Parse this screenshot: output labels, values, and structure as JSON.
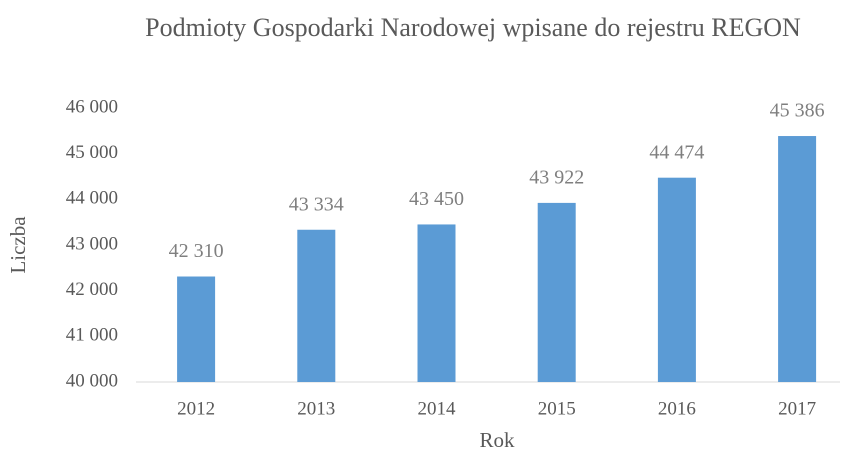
{
  "chart_data": {
    "type": "bar",
    "title": "Podmioty Gospodarki Narodowej wpisane do rejestru REGON",
    "x_label": "Rok",
    "y_label": "Liczba",
    "categories": [
      "2012",
      "2013",
      "2014",
      "2015",
      "2016",
      "2017"
    ],
    "values": [
      42310,
      43334,
      43450,
      43922,
      44474,
      45386
    ],
    "value_labels": [
      "42 310",
      "43 334",
      "43 450",
      "43 922",
      "44 474",
      "45 386"
    ],
    "color": "#5b9bd5",
    "ylim": [
      40000,
      46000
    ],
    "yticks": [
      {
        "value": 40000,
        "label": "40 000"
      },
      {
        "value": 41000,
        "label": "41 000"
      },
      {
        "value": 42000,
        "label": "42 000"
      },
      {
        "value": 43000,
        "label": "43 000"
      },
      {
        "value": 44000,
        "label": "44 000"
      },
      {
        "value": 45000,
        "label": "45 000"
      },
      {
        "value": 46000,
        "label": "46 000"
      }
    ],
    "grid": false
  }
}
